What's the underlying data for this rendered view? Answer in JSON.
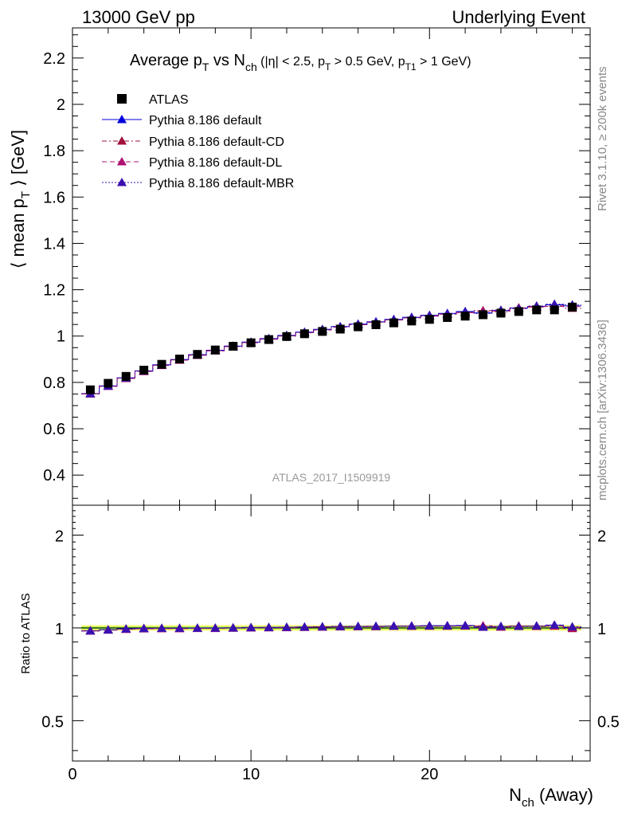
{
  "header": {
    "left": "13000 GeV pp",
    "right": "Underlying Event"
  },
  "side_labels": {
    "rivet": "Rivet 3.1.10, ≥ 200k events",
    "mcplots": "mcplots.cern.ch [arXiv:1306.3436]"
  },
  "watermark": "ATLAS_2017_I1509919",
  "title": {
    "part1": "Average p",
    "sub1": "T",
    "part2": " vs N",
    "sub2": "ch",
    "part3": " (|η| < 2.5, p",
    "sub3": "T",
    "part4": " > 0.5 GeV, p",
    "sub4": "T1",
    "part5": " > 1 GeV)"
  },
  "y_axis_label": {
    "part1": "⟨ mean p",
    "sub": "T",
    "part2": " ⟩ [GeV]"
  },
  "x_axis_label": {
    "part1": "N",
    "sub": "ch",
    "part2": " (Away)"
  },
  "ratio_ylabel": "Ratio to ATLAS",
  "colors": {
    "atlas": "#000000",
    "default": "#0000dd",
    "cd": "#a0103a",
    "dl": "#b01070",
    "mbr": "#3a10b0",
    "band_yellow": "#ffff66",
    "band_green": "#99ee55"
  },
  "chart_data": {
    "type": "scatter",
    "x_label": "N_ch (Away)",
    "y_label": "⟨ mean p_T ⟩ [GeV]",
    "xlim": [
      0,
      29
    ],
    "ylim_main": [
      0.27,
      2.33
    ],
    "ylim_ratio": [
      0.37,
      2.5
    ],
    "ratio_scale": "log",
    "x_ticks": [
      0,
      10,
      20
    ],
    "y_ticks_main": [
      0.4,
      0.6,
      0.8,
      1,
      1.2,
      1.4,
      1.6,
      1.8,
      2,
      2.2
    ],
    "y_ticks_ratio": [
      0.5,
      1,
      2
    ],
    "x": [
      1,
      2,
      3,
      4,
      5,
      6,
      7,
      8,
      9,
      10,
      11,
      12,
      13,
      14,
      15,
      16,
      17,
      18,
      19,
      20,
      21,
      22,
      23,
      24,
      25,
      26,
      27,
      28
    ],
    "series": [
      {
        "name": "ATLAS",
        "marker": "square",
        "style": "none",
        "values": [
          0.768,
          0.796,
          0.826,
          0.853,
          0.878,
          0.901,
          0.921,
          0.94,
          0.956,
          0.971,
          0.985,
          0.998,
          1.01,
          1.02,
          1.03,
          1.04,
          1.049,
          1.057,
          1.065,
          1.072,
          1.08,
          1.086,
          1.092,
          1.099,
          1.106,
          1.113,
          1.113,
          1.125
        ]
      },
      {
        "name": "Pythia 8.186 default",
        "marker": "triangle",
        "style": "solid",
        "values": [
          0.752,
          0.785,
          0.82,
          0.85,
          0.876,
          0.899,
          0.92,
          0.939,
          0.957,
          0.974,
          0.989,
          1.003,
          1.017,
          1.029,
          1.041,
          1.052,
          1.062,
          1.072,
          1.081,
          1.09,
          1.098,
          1.106,
          1.1,
          1.11,
          1.121,
          1.128,
          1.135,
          1.13
        ]
      },
      {
        "name": "Pythia 8.186 default-CD",
        "marker": "triangle",
        "style": "dashdot",
        "values": [
          0.751,
          0.784,
          0.818,
          0.848,
          0.874,
          0.897,
          0.918,
          0.937,
          0.955,
          0.972,
          0.987,
          1.001,
          1.015,
          1.027,
          1.039,
          1.05,
          1.06,
          1.07,
          1.079,
          1.087,
          1.095,
          1.102,
          1.11,
          1.105,
          1.122,
          1.125,
          1.13,
          1.12
        ]
      },
      {
        "name": "Pythia 8.186 default-DL",
        "marker": "triangle",
        "style": "dashed",
        "values": [
          0.75,
          0.783,
          0.817,
          0.847,
          0.873,
          0.896,
          0.917,
          0.936,
          0.954,
          0.971,
          0.986,
          1.0,
          1.014,
          1.026,
          1.038,
          1.049,
          1.059,
          1.069,
          1.078,
          1.086,
          1.094,
          1.101,
          1.106,
          1.108,
          1.12,
          1.127,
          1.128,
          1.127
        ]
      },
      {
        "name": "Pythia 8.186 default-MBR",
        "marker": "triangle",
        "style": "dotted",
        "values": [
          0.751,
          0.784,
          0.819,
          0.849,
          0.875,
          0.898,
          0.919,
          0.938,
          0.956,
          0.973,
          0.988,
          1.002,
          1.016,
          1.028,
          1.04,
          1.051,
          1.061,
          1.071,
          1.08,
          1.088,
          1.096,
          1.104,
          1.097,
          1.112,
          1.118,
          1.13,
          1.138,
          1.135
        ]
      }
    ]
  }
}
